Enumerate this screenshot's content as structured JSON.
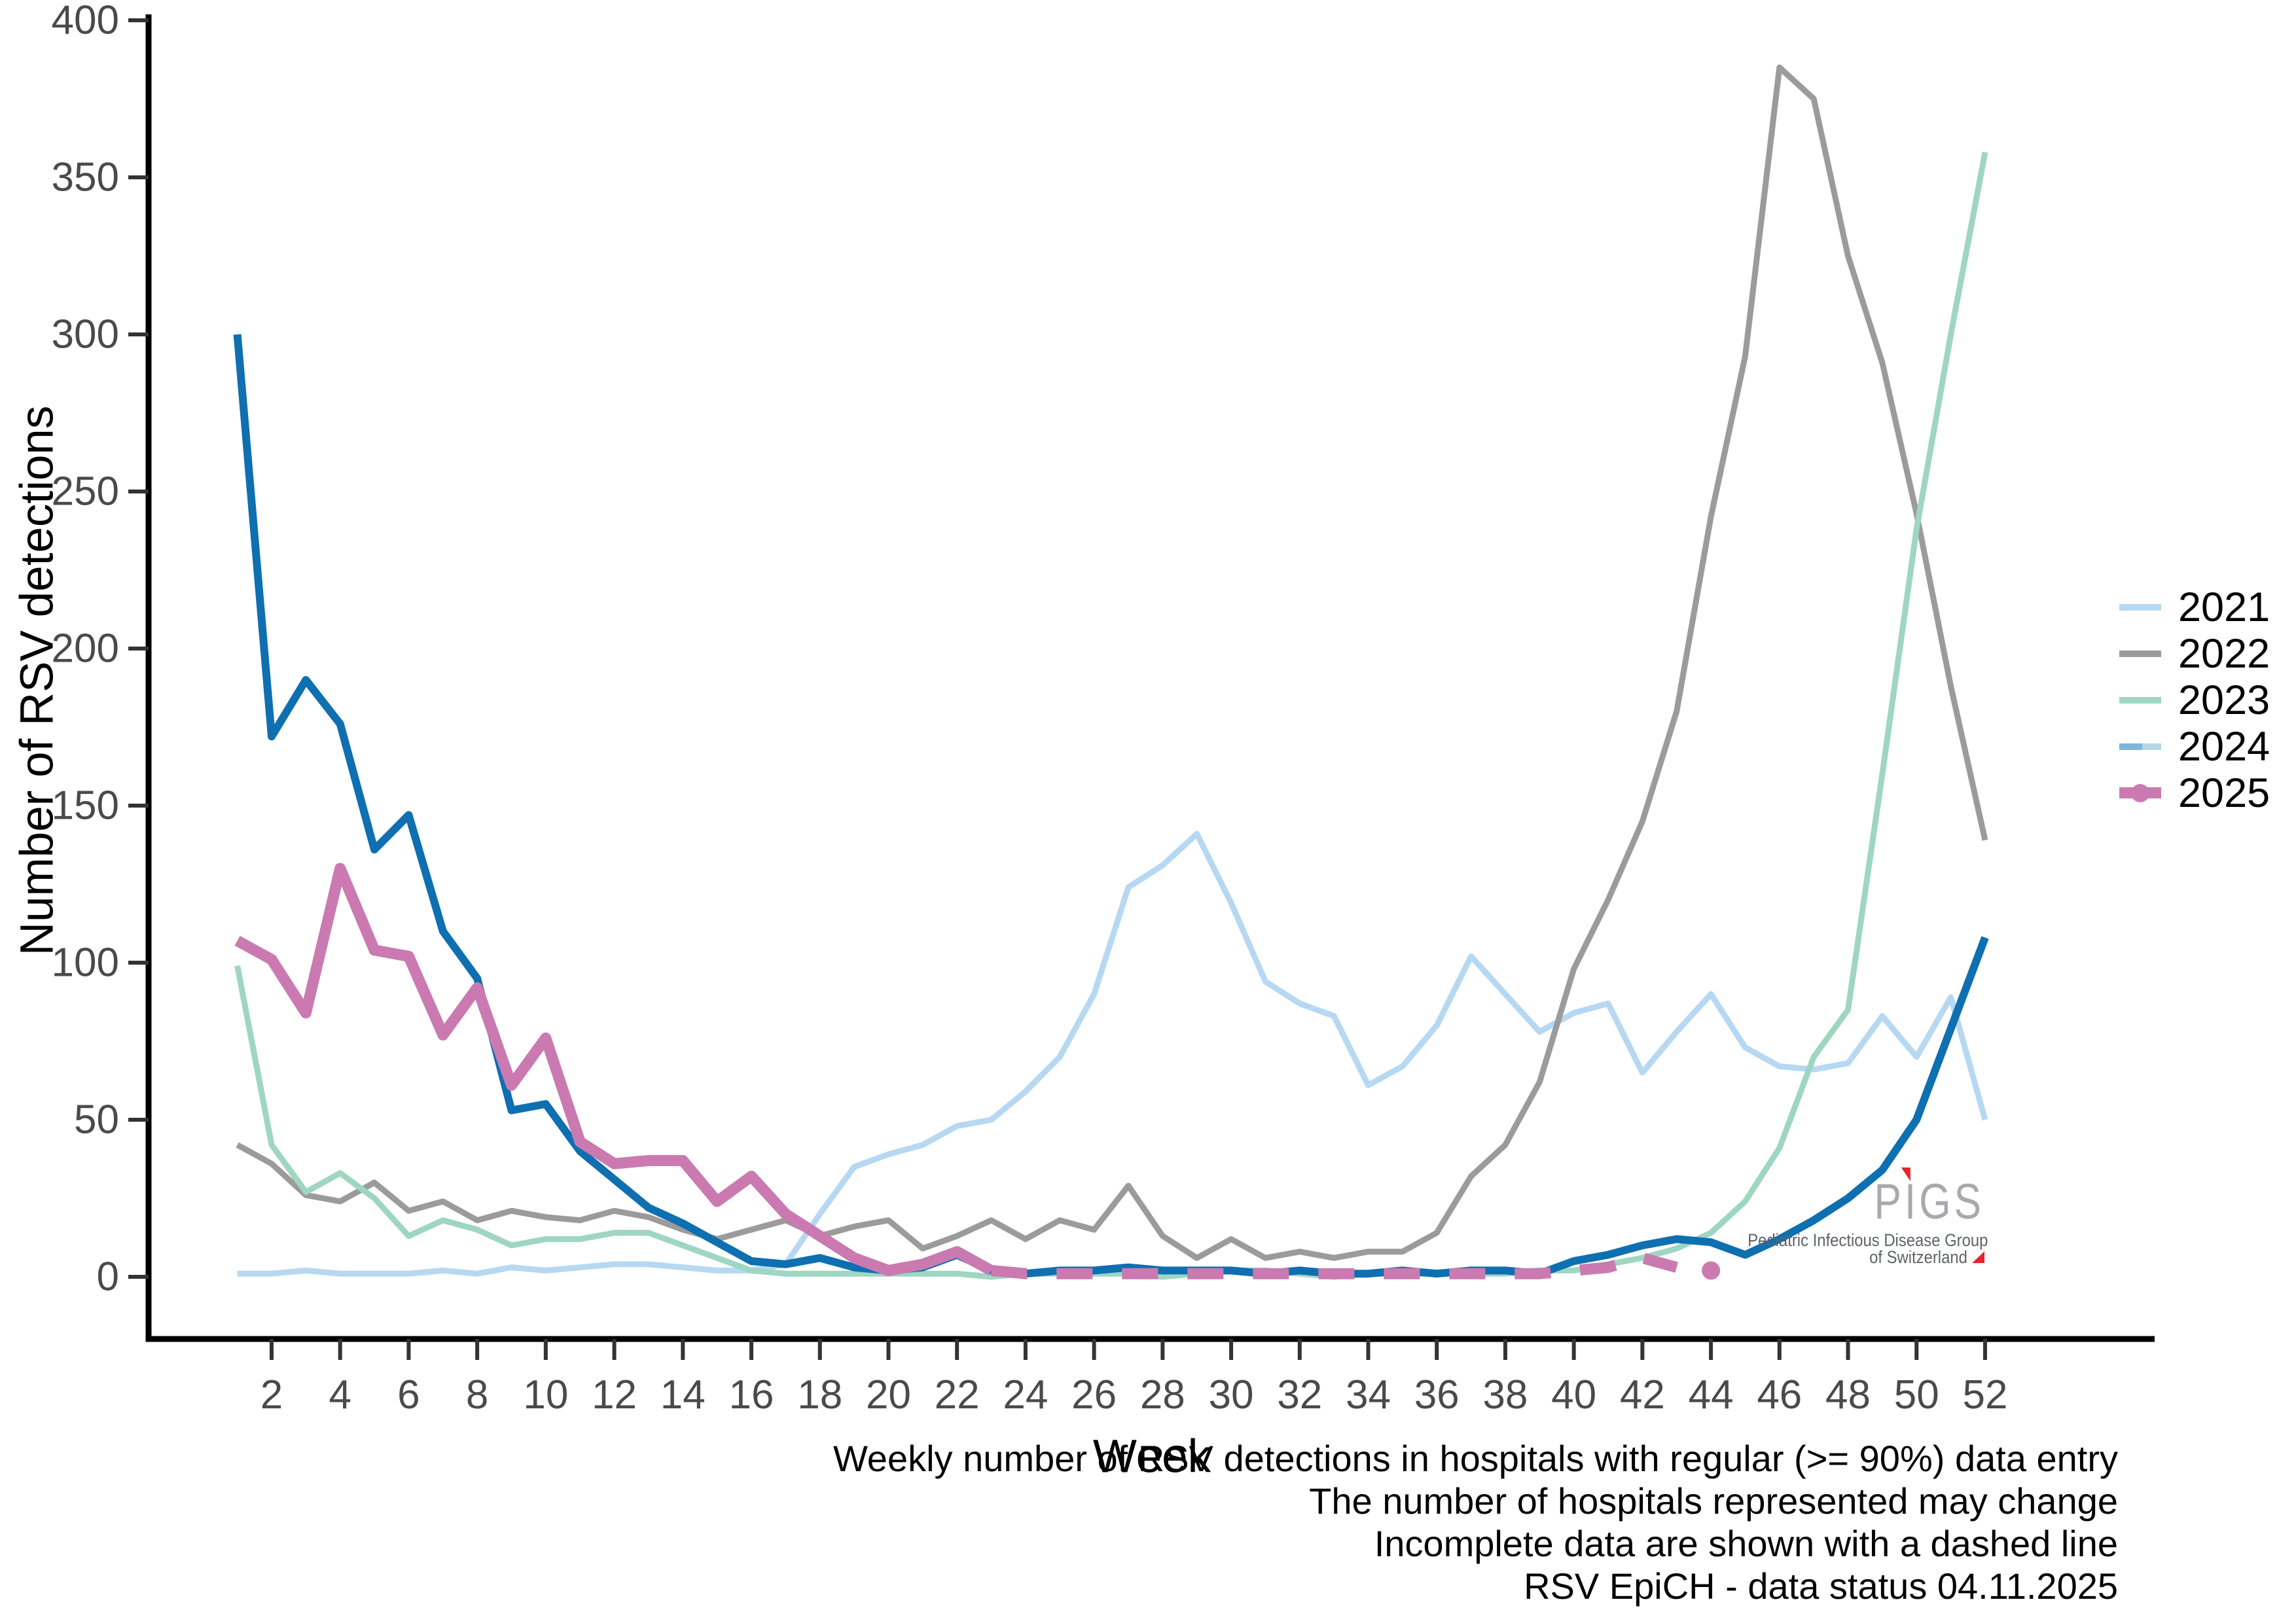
{
  "captions": [
    "Weekly number of RSV detections in hospitals with regular (>= 90%) data entry",
    "The number of hospitals represented may change",
    "Incomplete data are shown with a dashed line",
    "RSV EpiCH - data status 04.11.2025"
  ],
  "legend": {
    "position": "right",
    "items": [
      {
        "label": "2021",
        "color": "#b6d8f2",
        "style": "line"
      },
      {
        "label": "2022",
        "color": "#9b9b9b",
        "style": "line"
      },
      {
        "label": "2023",
        "color": "#9ed6c2",
        "style": "line"
      },
      {
        "label": "2024",
        "color": "#7eb5d8",
        "color2": "#b7d6e8",
        "style": "line-two-tone"
      },
      {
        "label": "2025",
        "color": "#ca7ab1",
        "style": "thick-line-with-dot"
      }
    ]
  },
  "logo": {
    "text": "PIGS",
    "part_p": "P",
    "part_i": "I",
    "part_gs": "GS",
    "line1": "Pediatric Infectious Disease Group",
    "line2": "of Switzerland",
    "letter_color": "#a8a8ae",
    "tagline_color": "#5f6368",
    "accent_red": "#e8242b"
  },
  "chart_data": {
    "type": "line",
    "title": "",
    "xlabel": "Week",
    "ylabel": "Number of RSV detections",
    "ylim": [
      0,
      400
    ],
    "yticks": [
      0,
      50,
      100,
      150,
      200,
      250,
      300,
      350,
      400
    ],
    "xticks": [
      2,
      4,
      6,
      8,
      10,
      12,
      14,
      16,
      18,
      20,
      22,
      24,
      26,
      28,
      30,
      32,
      34,
      36,
      38,
      40,
      42,
      44,
      46,
      48,
      50,
      52
    ],
    "grid": false,
    "x": [
      1,
      2,
      3,
      4,
      5,
      6,
      7,
      8,
      9,
      10,
      11,
      12,
      13,
      14,
      15,
      16,
      17,
      18,
      19,
      20,
      21,
      22,
      23,
      24,
      25,
      26,
      27,
      28,
      29,
      30,
      31,
      32,
      33,
      34,
      35,
      36,
      37,
      38,
      39,
      40,
      41,
      42,
      43,
      44,
      45,
      46,
      47,
      48,
      49,
      50,
      51,
      52
    ],
    "tick_label_color": "#4a4a4a",
    "axis_color": "#000000",
    "series": [
      {
        "name": "2021",
        "color": "#b6d8f2",
        "width": 9,
        "values": [
          1,
          1,
          2,
          1,
          1,
          1,
          2,
          1,
          3,
          2,
          3,
          4,
          4,
          3,
          2,
          2,
          4,
          20,
          35,
          39,
          42,
          48,
          50,
          59,
          70,
          90,
          124,
          131,
          141,
          119,
          94,
          87,
          83,
          61,
          67,
          80,
          102,
          90,
          78,
          84,
          87,
          65,
          78,
          90,
          73,
          67,
          66,
          68,
          83,
          70,
          89,
          50
        ]
      },
      {
        "name": "2022",
        "color": "#9b9b9b",
        "width": 9,
        "values": [
          42,
          36,
          26,
          24,
          30,
          21,
          24,
          18,
          21,
          19,
          18,
          21,
          19,
          15,
          12,
          15,
          18,
          13,
          16,
          18,
          9,
          13,
          18,
          12,
          18,
          15,
          29,
          13,
          6,
          12,
          6,
          8,
          6,
          8,
          8,
          14,
          32,
          42,
          62,
          98,
          120,
          145,
          180,
          242,
          293,
          385,
          375,
          325,
          291,
          243,
          188,
          139
        ]
      },
      {
        "name": "2023",
        "color": "#9ed6c2",
        "width": 9,
        "values": [
          99,
          42,
          27,
          33,
          25,
          13,
          18,
          15,
          10,
          12,
          12,
          14,
          14,
          10,
          6,
          2,
          1,
          1,
          1,
          1,
          1,
          1,
          0,
          1,
          1,
          1,
          1,
          0,
          1,
          2,
          2,
          1,
          0,
          1,
          1,
          1,
          1,
          1,
          2,
          2,
          4,
          6,
          9,
          14,
          24,
          41,
          70,
          85,
          160,
          238,
          300,
          358
        ]
      },
      {
        "name": "2024",
        "color": "#0e6fb1",
        "width": 12,
        "values": [
          300,
          172,
          190,
          176,
          136,
          147,
          110,
          95,
          53,
          55,
          40,
          31,
          22,
          17,
          11,
          5,
          4,
          6,
          3,
          2,
          3,
          7,
          2,
          1,
          2,
          2,
          3,
          2,
          2,
          2,
          1,
          2,
          1,
          1,
          2,
          1,
          2,
          2,
          1,
          5,
          7,
          10,
          12,
          11,
          7,
          12,
          18,
          25,
          34,
          50,
          79,
          108
        ]
      },
      {
        "name": "2025",
        "color": "#ca7ab1",
        "width": 17,
        "values": [
          107,
          101,
          84,
          130,
          104,
          102,
          77,
          92,
          61,
          76,
          43,
          36,
          37,
          37,
          24,
          32,
          20,
          13,
          6,
          2,
          4,
          8,
          2,
          1,
          1,
          1,
          1,
          1,
          1,
          1,
          1,
          1,
          1,
          1,
          1,
          1,
          1,
          1,
          1,
          2,
          3,
          6,
          3
        ],
        "solid_through_week": 23,
        "dashed_from_week": 23,
        "dash_pattern": [
          55,
          45
        ],
        "isolated_point": {
          "week": 44,
          "value": 2,
          "radius": 14
        }
      }
    ]
  }
}
